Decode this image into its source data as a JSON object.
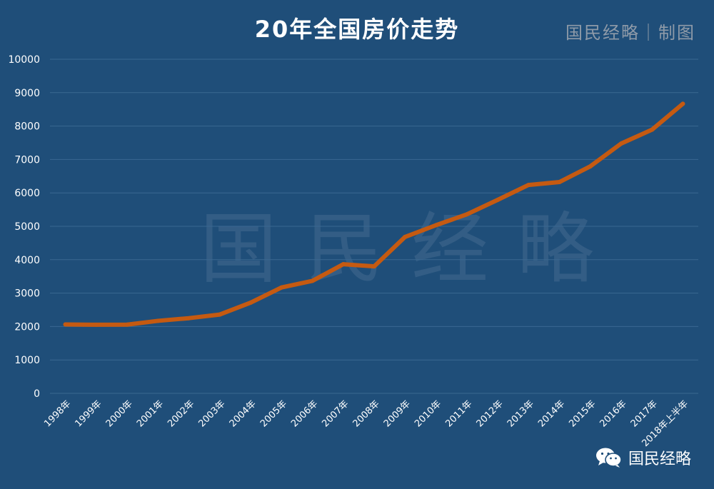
{
  "header": {
    "title": "20年全国房价走势",
    "credit": "国民经略｜制图"
  },
  "watermark": "国民经略",
  "brand": {
    "icon": "wechat-icon",
    "label": "国民经略"
  },
  "colors": {
    "background": "#1f4e79",
    "line": "#c55a11",
    "grid": "#3a6891",
    "text": "#ffffff"
  },
  "chart_data": {
    "type": "line",
    "title": "20年全国房价走势",
    "categories": [
      "1998年",
      "1999年",
      "2000年",
      "2001年",
      "2002年",
      "2003年",
      "2004年",
      "2005年",
      "2006年",
      "2007年",
      "2008年",
      "2009年",
      "2010年",
      "2011年",
      "2012年",
      "2013年",
      "2014年",
      "2015年",
      "2016年",
      "2017年",
      "2018年上半年"
    ],
    "series": [
      {
        "name": "",
        "values": [
          2063,
          2053,
          2057,
          2170,
          2250,
          2359,
          2714,
          3168,
          3367,
          3864,
          3800,
          4681,
          5032,
          5357,
          5791,
          6237,
          6324,
          6793,
          7476,
          7892,
          8667
        ]
      }
    ],
    "ylim": [
      0,
      10000
    ],
    "yticks": [
      0,
      1000,
      2000,
      3000,
      4000,
      5000,
      6000,
      7000,
      8000,
      9000,
      10000
    ],
    "grid": true,
    "legend": "none"
  }
}
